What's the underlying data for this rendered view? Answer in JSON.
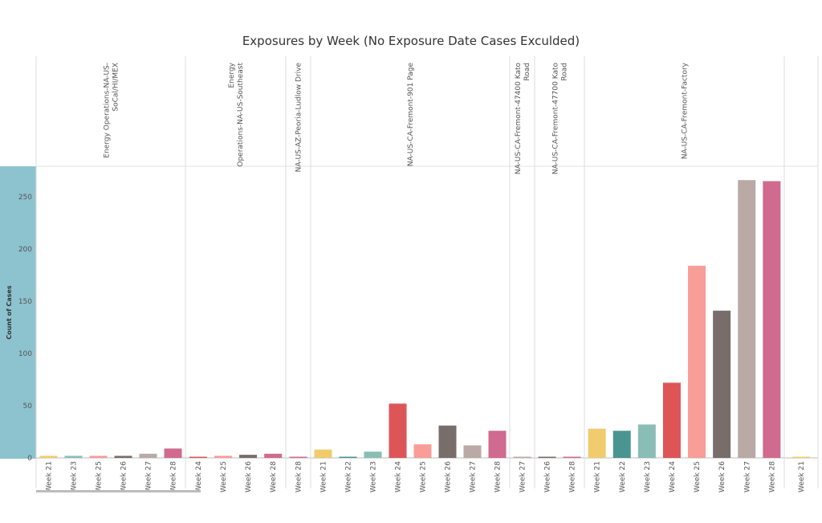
{
  "chart_data": {
    "type": "bar",
    "title": "Exposures by Week (No Exposure Date Cases Exculded)",
    "ylabel": "Count of Cases",
    "xlabel": "",
    "ylim": [
      0,
      280
    ],
    "yticks": [
      0,
      50,
      100,
      150,
      200,
      250
    ],
    "week_colors": {
      "Week 21": "#F0CC6E",
      "Week 22": "#4A9591",
      "Week 23": "#8ABDB6",
      "Week 24": "#DD5557",
      "Week 25": "#F89D97",
      "Week 26": "#776D6A",
      "Week 27": "#B9AAA6",
      "Week 28": "#D06A8E"
    },
    "groups": [
      {
        "label": "Energy Operations-NA-US-SoCal/HI/MEX",
        "label_lines": [
          "Energy Operations-NA-US-",
          "SoCal/HI/MEX"
        ],
        "bars": [
          {
            "week": "Week 21",
            "value": 2
          },
          {
            "week": "Week 23",
            "value": 2
          },
          {
            "week": "Week 25",
            "value": 2
          },
          {
            "week": "Week 26",
            "value": 2
          },
          {
            "week": "Week 27",
            "value": 4
          },
          {
            "week": "Week 28",
            "value": 9
          }
        ]
      },
      {
        "label": "Energy Operations-NA-US-Southeast",
        "label_lines": [
          "Energy",
          "Operations-NA-US-Southeast"
        ],
        "bars": [
          {
            "week": "Week 24",
            "value": 1
          },
          {
            "week": "Week 25",
            "value": 2
          },
          {
            "week": "Week 26",
            "value": 3
          },
          {
            "week": "Week 28",
            "value": 4
          }
        ]
      },
      {
        "label": "NA-US-AZ-Peoria-Ludlow Drive",
        "label_lines": [
          "NA-US-AZ-Peoria-Ludlow Drive"
        ],
        "bars": [
          {
            "week": "Week 28",
            "value": 1
          }
        ]
      },
      {
        "label": "NA-US-CA-Fremont-901 Page",
        "label_lines": [
          "NA-US-CA-Fremont-901 Page"
        ],
        "bars": [
          {
            "week": "Week 21",
            "value": 8
          },
          {
            "week": "Week 22",
            "value": 1
          },
          {
            "week": "Week 23",
            "value": 6
          },
          {
            "week": "Week 24",
            "value": 52
          },
          {
            "week": "Week 25",
            "value": 13
          },
          {
            "week": "Week 26",
            "value": 31
          },
          {
            "week": "Week 27",
            "value": 12
          },
          {
            "week": "Week 28",
            "value": 26
          }
        ]
      },
      {
        "label": "NA-US-CA-Fremont-47400 Kato Road",
        "label_lines": [
          "NA-US-CA-Fremont-47400 Kato",
          "Road"
        ],
        "bars": [
          {
            "week": "Week 27",
            "value": 0.5
          }
        ]
      },
      {
        "label": "NA-US-CA-Fremont-47700 Kato Road",
        "label_lines": [
          "NA-US-CA-Fremont-47700 Kato",
          "Road"
        ],
        "bars": [
          {
            "week": "Week 26",
            "value": 1
          },
          {
            "week": "Week 28",
            "value": 1
          }
        ]
      },
      {
        "label": "NA-US-CA-Fremont-Factory",
        "label_lines": [
          "NA-US-CA-Fremont-Factory"
        ],
        "bars": [
          {
            "week": "Week 21",
            "value": 28
          },
          {
            "week": "Week 22",
            "value": 26
          },
          {
            "week": "Week 23",
            "value": 32
          },
          {
            "week": "Week 24",
            "value": 72
          },
          {
            "week": "Week 25",
            "value": 184
          },
          {
            "week": "Week 26",
            "value": 141
          },
          {
            "week": "Week 27",
            "value": 266
          },
          {
            "week": "Week 28",
            "value": 265
          }
        ]
      },
      {
        "label": "",
        "label_lines": [],
        "bars": [
          {
            "week": "Week 21",
            "value": 1
          }
        ]
      }
    ]
  }
}
